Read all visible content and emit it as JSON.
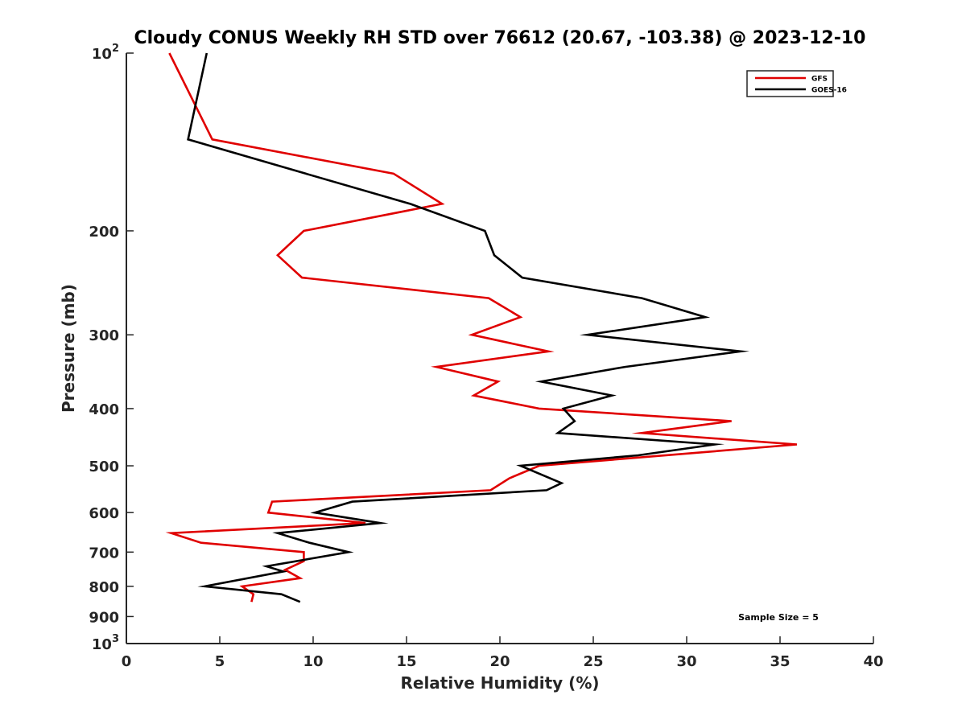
{
  "chart_data": {
    "type": "line",
    "title": "Cloudy CONUS Weekly RH STD over 76612 (20.67, -103.38) @ 2023-12-10",
    "xlabel": "Relative Humidity (%)",
    "ylabel": "Pressure (mb)",
    "xlim": [
      0,
      40
    ],
    "ylim": [
      1000,
      100
    ],
    "yscale": "log",
    "y_inverted": true,
    "grid": false,
    "xticks": [
      0,
      5,
      10,
      15,
      20,
      25,
      30,
      35,
      40
    ],
    "xtick_labels": [
      "0",
      "5",
      "10",
      "15",
      "20",
      "25",
      "30",
      "35",
      "40"
    ],
    "yticks": [
      100,
      200,
      300,
      400,
      500,
      600,
      700,
      800,
      900,
      1000
    ],
    "ytick_labels": [
      "10^2",
      "200",
      "300",
      "400",
      "500",
      "600",
      "700",
      "800",
      "900",
      "10^3"
    ],
    "legend_position": "top-right",
    "annotation": "Sample Size = 5",
    "series": [
      {
        "name": "GFS",
        "color": "#e00000",
        "points": [
          [
            2.3,
            100
          ],
          [
            4.6,
            140
          ],
          [
            14.3,
            160
          ],
          [
            16.9,
            180
          ],
          [
            9.5,
            200
          ],
          [
            8.1,
            220
          ],
          [
            9.4,
            240
          ],
          [
            19.4,
            260
          ],
          [
            21.1,
            280
          ],
          [
            18.5,
            300
          ],
          [
            22.6,
            320
          ],
          [
            16.6,
            340
          ],
          [
            19.9,
            360
          ],
          [
            18.6,
            380
          ],
          [
            22.1,
            400
          ],
          [
            32.4,
            420
          ],
          [
            27.6,
            440
          ],
          [
            35.9,
            460
          ],
          [
            22.1,
            500
          ],
          [
            20.5,
            525
          ],
          [
            19.5,
            550
          ],
          [
            7.8,
            575
          ],
          [
            7.6,
            600
          ],
          [
            12.8,
            625
          ],
          [
            2.4,
            650
          ],
          [
            4.0,
            675
          ],
          [
            9.5,
            700
          ],
          [
            9.5,
            725
          ],
          [
            8.5,
            750
          ],
          [
            9.3,
            775
          ],
          [
            6.2,
            800
          ],
          [
            6.8,
            825
          ],
          [
            6.7,
            850
          ]
        ]
      },
      {
        "name": "GOES-16",
        "color": "#000000",
        "points": [
          [
            4.3,
            100
          ],
          [
            3.3,
            140
          ],
          [
            9.6,
            160
          ],
          [
            15.2,
            180
          ],
          [
            19.2,
            200
          ],
          [
            19.7,
            220
          ],
          [
            21.2,
            240
          ],
          [
            27.6,
            260
          ],
          [
            31.0,
            280
          ],
          [
            24.7,
            300
          ],
          [
            32.9,
            320
          ],
          [
            26.7,
            340
          ],
          [
            22.2,
            360
          ],
          [
            26.0,
            380
          ],
          [
            23.4,
            400
          ],
          [
            24.0,
            420
          ],
          [
            23.1,
            440
          ],
          [
            31.5,
            460
          ],
          [
            27.4,
            480
          ],
          [
            21.1,
            500
          ],
          [
            23.3,
            535
          ],
          [
            22.5,
            550
          ],
          [
            12.1,
            575
          ],
          [
            10.1,
            600
          ],
          [
            13.6,
            625
          ],
          [
            8.1,
            650
          ],
          [
            9.8,
            675
          ],
          [
            11.9,
            700
          ],
          [
            7.5,
            740
          ],
          [
            8.4,
            755
          ],
          [
            4.2,
            800
          ],
          [
            8.3,
            825
          ],
          [
            9.3,
            850
          ]
        ]
      }
    ]
  }
}
